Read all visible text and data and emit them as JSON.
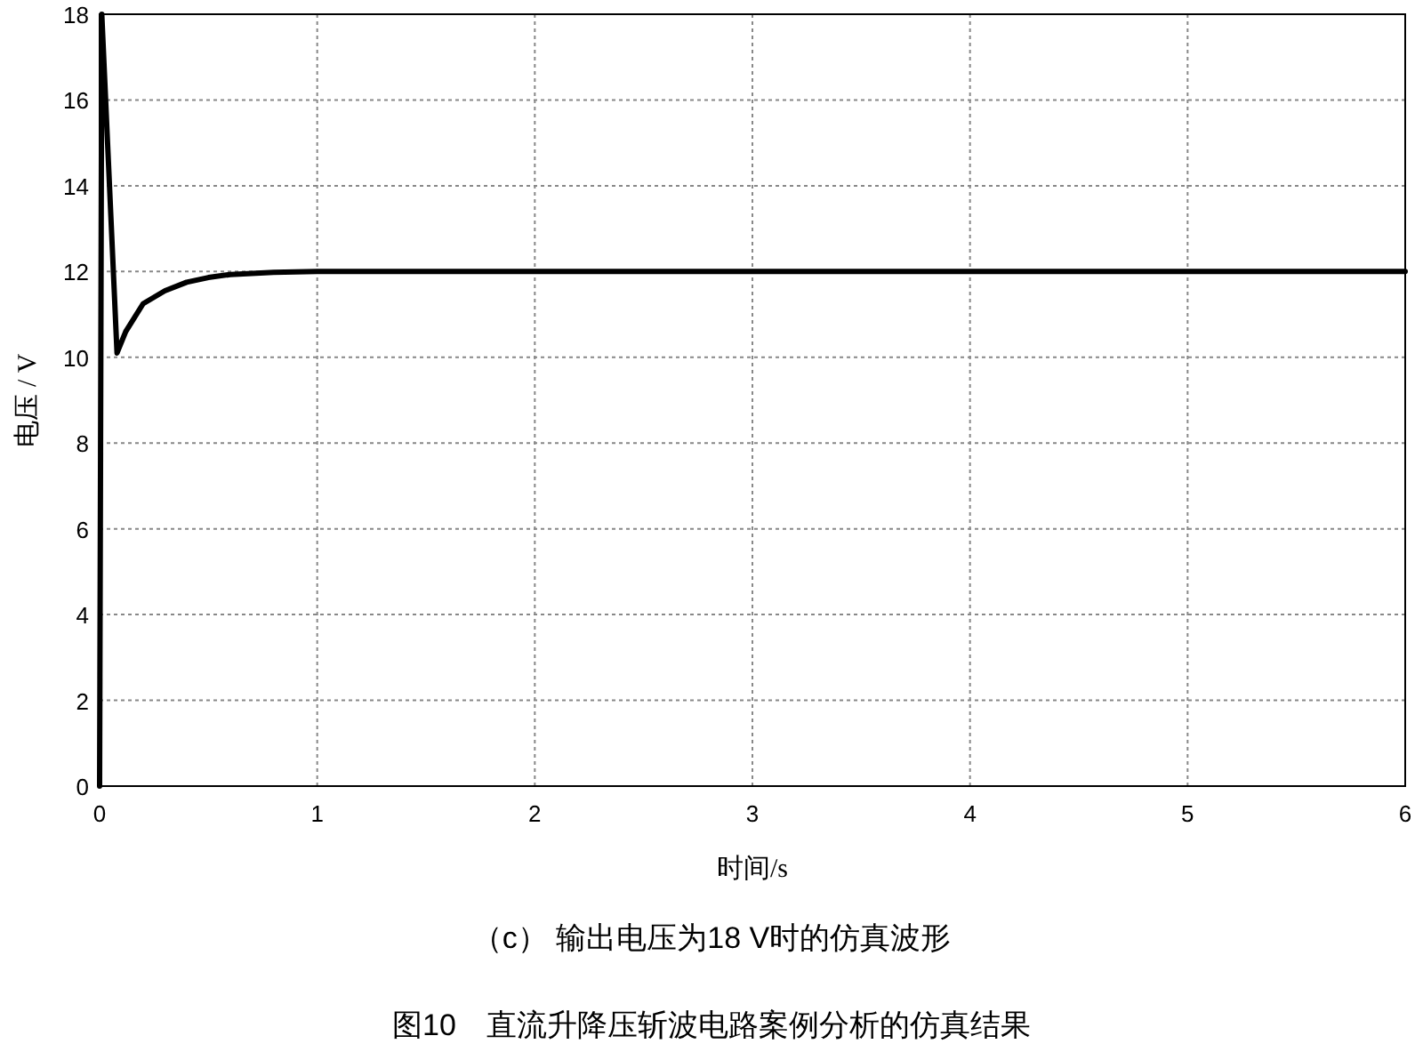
{
  "chart_data": {
    "type": "line",
    "title": "图10　直流升降压斩波电路案例分析的仿真结果",
    "subtitle": "（c）  输出电压为18 V时的仿真波形",
    "xlabel": "时间/s",
    "ylabel": "电压 / V",
    "x": [
      0,
      0.01,
      0.08,
      0.12,
      0.2,
      0.3,
      0.4,
      0.5,
      0.6,
      0.8,
      1.0,
      6
    ],
    "series": [
      {
        "color": "#000000",
        "values": [
          0,
          18,
          10.1,
          10.6,
          11.25,
          11.55,
          11.75,
          11.86,
          11.93,
          11.98,
          12,
          12
        ]
      }
    ],
    "xlim": [
      0,
      6
    ],
    "ylim": [
      0,
      18
    ],
    "xticks": [
      0,
      1,
      2,
      3,
      4,
      5,
      6
    ],
    "yticks": [
      0,
      2,
      4,
      6,
      8,
      10,
      12,
      14,
      16,
      18
    ],
    "grid": true,
    "line_style": "solid",
    "marker": "none"
  }
}
